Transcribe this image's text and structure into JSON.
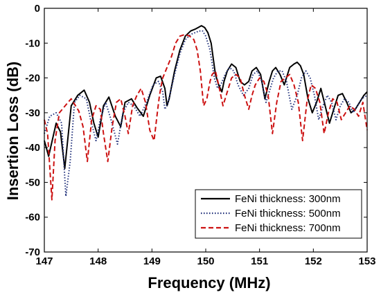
{
  "chart_data": {
    "type": "line",
    "title": "",
    "xlabel": "Frequency (MHz)",
    "ylabel": "Insertion Loss (dB)",
    "xlim": [
      147,
      153
    ],
    "ylim": [
      -70,
      0
    ],
    "xticks": [
      "147",
      "148",
      "149",
      "150",
      "151",
      "152",
      "153"
    ],
    "yticks": [
      "0",
      "-10",
      "-20",
      "-30",
      "-40",
      "-50",
      "-60",
      "-70"
    ],
    "grid": false,
    "legend_position": "bottom-right",
    "series": [
      {
        "name": "FeNi thickness: 300nm",
        "color": "#000000",
        "dash": "solid",
        "x": [
          147.0,
          147.08,
          147.22,
          147.3,
          147.38,
          147.5,
          147.62,
          147.74,
          147.84,
          147.92,
          148.0,
          148.1,
          148.2,
          148.32,
          148.42,
          148.5,
          148.62,
          148.72,
          148.84,
          148.96,
          149.08,
          149.16,
          149.24,
          149.28,
          149.32,
          149.42,
          149.52,
          149.62,
          149.72,
          149.8,
          149.86,
          149.92,
          149.98,
          150.04,
          150.1,
          150.18,
          150.24,
          150.3,
          150.34,
          150.4,
          150.48,
          150.56,
          150.64,
          150.72,
          150.8,
          150.86,
          150.94,
          151.02,
          151.1,
          151.18,
          151.24,
          151.3,
          151.38,
          151.46,
          151.56,
          151.64,
          151.7,
          151.76,
          151.82,
          151.9,
          151.98,
          152.06,
          152.14,
          152.22,
          152.3,
          152.38,
          152.46,
          152.54,
          152.62,
          152.7,
          152.78,
          152.86,
          152.94,
          153.0
        ],
        "y": [
          -38,
          -42.5,
          -33,
          -35.5,
          -46,
          -28,
          -25,
          -23.5,
          -27,
          -33,
          -37,
          -28,
          -25.5,
          -31,
          -34,
          -27,
          -26,
          -28.5,
          -31,
          -25,
          -20,
          -19.5,
          -23,
          -28,
          -26,
          -18,
          -12,
          -8,
          -6.5,
          -6,
          -5.5,
          -5,
          -5.5,
          -7,
          -10,
          -19,
          -22,
          -24,
          -21,
          -18,
          -16,
          -17,
          -21,
          -22,
          -21,
          -18,
          -17,
          -19,
          -26,
          -21,
          -18,
          -17,
          -19,
          -22,
          -17,
          -16,
          -15.5,
          -16.5,
          -19,
          -26,
          -30,
          -27,
          -23,
          -28,
          -33,
          -29,
          -25,
          -24.5,
          -27,
          -30,
          -29,
          -27,
          -25,
          -24
        ]
      },
      {
        "name": "FeNi thickness: 500nm",
        "color": "#1f2f7a",
        "dash": "dotted",
        "x": [
          147.0,
          147.1,
          147.22,
          147.32,
          147.4,
          147.48,
          147.56,
          147.66,
          147.78,
          147.86,
          147.96,
          148.04,
          148.14,
          148.24,
          148.36,
          148.46,
          148.56,
          148.66,
          148.78,
          148.9,
          149.02,
          149.12,
          149.2,
          149.24,
          149.3,
          149.42,
          149.52,
          149.62,
          149.72,
          149.8,
          149.88,
          149.94,
          150.0,
          150.08,
          150.16,
          150.22,
          150.28,
          150.36,
          150.44,
          150.52,
          150.6,
          150.7,
          150.8,
          150.88,
          150.96,
          151.04,
          151.12,
          151.18,
          151.26,
          151.34,
          151.42,
          151.5,
          151.6,
          151.7,
          151.78,
          151.86,
          151.94,
          152.02,
          152.1,
          152.18,
          152.26,
          152.34,
          152.42,
          152.5,
          152.58,
          152.66,
          152.74,
          152.82,
          152.9,
          153.0
        ],
        "y": [
          -36,
          -31,
          -30,
          -33,
          -54,
          -44,
          -27,
          -25,
          -26,
          -32,
          -38,
          -32,
          -27,
          -32,
          -39,
          -30,
          -27,
          -28,
          -31,
          -27,
          -22,
          -21,
          -24,
          -29,
          -27,
          -19,
          -13,
          -9,
          -7.5,
          -7,
          -6.5,
          -6.5,
          -8,
          -12,
          -20,
          -23,
          -22,
          -19,
          -17,
          -18,
          -22,
          -25,
          -23,
          -19,
          -18,
          -21,
          -27,
          -24,
          -20,
          -18,
          -18,
          -21,
          -29,
          -25,
          -20,
          -18,
          -20,
          -25,
          -32,
          -28,
          -25,
          -27,
          -32,
          -28,
          -26,
          -27,
          -30,
          -28,
          -26,
          -25
        ]
      },
      {
        "name": "FeNi thickness: 700nm",
        "color": "#cc1111",
        "dash": "dashed",
        "x": [
          147.0,
          147.06,
          147.14,
          147.2,
          147.28,
          147.36,
          147.44,
          147.5,
          147.56,
          147.64,
          147.72,
          147.8,
          147.88,
          147.96,
          148.04,
          148.1,
          148.18,
          148.26,
          148.34,
          148.42,
          148.5,
          148.56,
          148.64,
          148.72,
          148.8,
          148.88,
          148.96,
          149.04,
          149.1,
          149.14,
          149.2,
          149.28,
          149.36,
          149.44,
          149.52,
          149.62,
          149.7,
          149.78,
          149.84,
          149.9,
          149.96,
          150.02,
          150.08,
          150.12,
          150.18,
          150.24,
          150.32,
          150.4,
          150.48,
          150.56,
          150.64,
          150.72,
          150.8,
          150.86,
          150.92,
          151.0,
          151.08,
          151.16,
          151.24,
          151.32,
          151.4,
          151.48,
          151.56,
          151.64,
          151.72,
          151.8,
          151.88,
          151.96,
          152.04,
          152.12,
          152.2,
          152.28,
          152.36,
          152.44,
          152.52,
          152.6,
          152.68,
          152.76,
          152.84,
          152.92,
          153.0
        ],
        "y": [
          -32,
          -36,
          -55,
          -38,
          -30,
          -28.5,
          -27,
          -26,
          -27.5,
          -29.5,
          -34,
          -44,
          -32,
          -28,
          -29,
          -36,
          -44,
          -34,
          -27,
          -26,
          -31,
          -36,
          -28,
          -25,
          -23,
          -27,
          -35,
          -38,
          -30,
          -25,
          -20,
          -17,
          -14,
          -10,
          -8,
          -7.5,
          -8,
          -9,
          -12,
          -18,
          -28,
          -26,
          -21,
          -19,
          -18,
          -22,
          -28,
          -24,
          -20,
          -19,
          -20,
          -25,
          -29,
          -25,
          -22,
          -20,
          -21,
          -25,
          -36,
          -27,
          -21,
          -20,
          -19,
          -22,
          -27,
          -38,
          -27,
          -22,
          -23,
          -27,
          -36,
          -30,
          -26,
          -27,
          -32,
          -30,
          -28,
          -29,
          -31,
          -27,
          -35
        ]
      }
    ]
  }
}
